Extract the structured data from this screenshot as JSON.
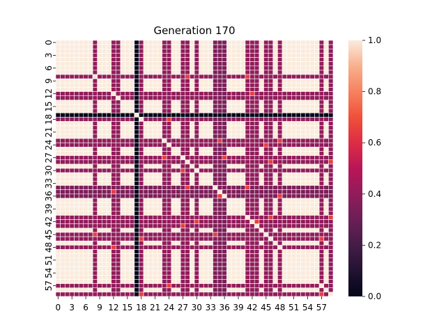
{
  "chart_data": {
    "type": "heatmap",
    "title": "Generation 170",
    "n": 60,
    "xtick_labels": [
      "0",
      "3",
      "6",
      "9",
      "12",
      "15",
      "18",
      "21",
      "24",
      "27",
      "30",
      "33",
      "36",
      "39",
      "42",
      "45",
      "48",
      "51",
      "54",
      "57"
    ],
    "ytick_labels": [
      "0",
      "3",
      "6",
      "9",
      "12",
      "15",
      "18",
      "21",
      "24",
      "27",
      "30",
      "33",
      "36",
      "39",
      "42",
      "45",
      "48",
      "51",
      "54",
      "57"
    ],
    "tick_values": [
      0,
      3,
      6,
      9,
      12,
      15,
      18,
      21,
      24,
      27,
      30,
      33,
      36,
      39,
      42,
      45,
      48,
      51,
      54,
      57
    ],
    "colorbar": {
      "range": [
        0.0,
        1.0
      ],
      "tick_values": [
        0.0,
        0.2,
        0.4,
        0.6,
        0.8,
        1.0
      ],
      "tick_labels": [
        "0.0",
        "0.2",
        "0.4",
        "0.6",
        "0.8",
        "1.0"
      ],
      "colormap": "rocket"
    },
    "black_indices": [
      17
    ],
    "pure_white_indices": [
      0,
      1,
      2,
      3,
      4,
      5,
      6,
      7,
      9,
      10,
      11,
      14,
      15,
      16,
      19,
      20,
      21,
      22,
      25,
      26,
      29,
      31,
      32,
      33,
      37,
      38,
      39,
      40,
      44,
      47,
      49,
      50,
      51,
      52,
      53,
      54,
      55,
      56,
      58
    ],
    "mixed_rows": [
      {
        "row": 8,
        "value": 0.4
      },
      {
        "row": 13,
        "value": 0.4
      },
      {
        "row": 18,
        "value": 0.4
      },
      {
        "row": 23,
        "value": 0.4
      },
      {
        "row": 24,
        "value": 0.4
      },
      {
        "row": 27,
        "value": 0.4
      },
      {
        "row": 28,
        "value": 0.4
      },
      {
        "row": 30,
        "value": 0.4
      },
      {
        "row": 34,
        "value": 0.35
      },
      {
        "row": 35,
        "value": 0.35
      },
      {
        "row": 36,
        "value": 0.35
      },
      {
        "row": 41,
        "value": 0.4
      },
      {
        "row": 42,
        "value": 0.4
      },
      {
        "row": 43,
        "value": 0.4
      },
      {
        "row": 45,
        "value": 0.4
      },
      {
        "row": 46,
        "value": 0.4
      },
      {
        "row": 48,
        "value": 0.4
      },
      {
        "row": 57,
        "value": 0.4
      },
      {
        "row": 59,
        "value": 0.4
      }
    ],
    "diagonal_value": 1.0,
    "accent_value": 0.65
  }
}
